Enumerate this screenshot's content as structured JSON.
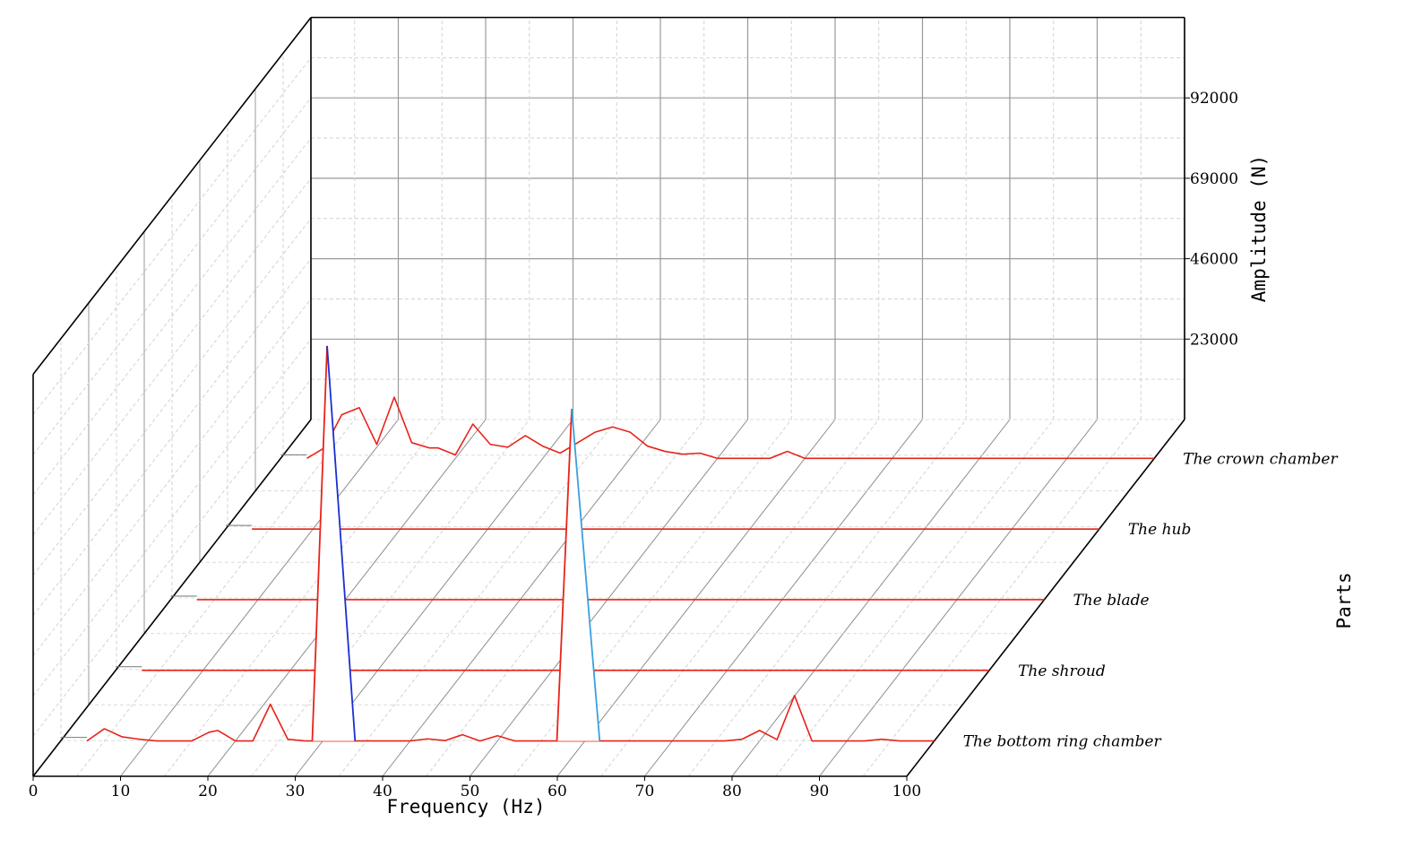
{
  "chart_data": {
    "type": "line",
    "projection": "3d-waterfall",
    "xlabel": "Frequency (Hz)",
    "ylabel": "Parts",
    "zlabel": "Amplitude (N)",
    "xlim": [
      0,
      100
    ],
    "zlim": [
      0,
      115000
    ],
    "x_ticks": [
      0,
      10,
      20,
      30,
      40,
      50,
      60,
      70,
      80,
      90,
      100
    ],
    "z_ticks": [
      23000,
      46000,
      69000,
      92000
    ],
    "grid": true,
    "frequencies": [
      5,
      7,
      9,
      11,
      13,
      15,
      17,
      18,
      20,
      22,
      24,
      26,
      28,
      30,
      32,
      34,
      36,
      38,
      40,
      42,
      44,
      46,
      48,
      50,
      52,
      54,
      56,
      58,
      60,
      62,
      64,
      66,
      68,
      70,
      72,
      74,
      76,
      78,
      80,
      82,
      84,
      86,
      88,
      90,
      92,
      94,
      96,
      98,
      100
    ],
    "series": [
      {
        "name": "The bottom ring chamber",
        "values": [
          3500,
          1200,
          500,
          0,
          0,
          0,
          2500,
          3000,
          0,
          0,
          10500,
          500,
          0,
          0,
          0,
          0,
          0,
          0,
          0,
          600,
          100,
          1800,
          0,
          1500,
          0,
          0,
          0,
          0,
          0,
          0,
          0,
          0,
          0,
          0,
          0,
          0,
          0,
          500,
          3000,
          400,
          13000,
          0,
          0,
          0,
          0,
          500,
          0,
          0,
          0
        ]
      },
      {
        "name": "The shroud",
        "values": [
          0,
          0,
          0,
          0,
          0,
          0,
          0,
          0,
          0,
          0,
          0,
          0,
          0,
          0,
          0,
          0,
          0,
          0,
          0,
          0,
          0,
          0,
          0,
          0,
          0,
          0,
          0,
          0,
          0,
          0,
          0,
          0,
          0,
          0,
          0,
          0,
          0,
          0,
          0,
          0,
          0,
          0,
          0,
          0,
          0,
          0,
          0,
          0,
          0
        ]
      },
      {
        "name": "The blade",
        "values": [
          0,
          0,
          0,
          0,
          0,
          0,
          0,
          0,
          0,
          0,
          0,
          0,
          0,
          0,
          0,
          0,
          0,
          0,
          0,
          0,
          0,
          0,
          0,
          0,
          0,
          0,
          0,
          0,
          0,
          0,
          0,
          0,
          0,
          0,
          0,
          0,
          0,
          0,
          0,
          0,
          0,
          0,
          0,
          0,
          0,
          0,
          0,
          0,
          0
        ]
      },
      {
        "name": "The hub",
        "values": [
          0,
          0,
          0,
          0,
          0,
          0,
          0,
          0,
          0,
          0,
          0,
          0,
          0,
          0,
          0,
          0,
          0,
          0,
          0,
          0,
          0,
          0,
          0,
          0,
          0,
          0,
          0,
          0,
          0,
          0,
          0,
          0,
          0,
          0,
          0,
          0,
          0,
          0,
          0,
          0,
          0,
          0,
          0,
          0,
          0,
          0,
          0,
          0,
          0
        ]
      },
      {
        "name": "The crown chamber",
        "values": [
          3000,
          12500,
          14500,
          4000,
          17500,
          4500,
          3000,
          3000,
          1000,
          9800,
          4000,
          3200,
          6500,
          3500,
          1500,
          4500,
          7500,
          9000,
          7500,
          3500,
          2000,
          1200,
          1500,
          0,
          0,
          0,
          0,
          2000,
          0,
          0,
          0,
          0,
          0,
          0,
          0,
          0,
          0,
          0,
          0,
          0,
          0,
          0,
          0,
          0,
          0,
          0,
          0,
          0,
          0
        ]
      }
    ],
    "spikes": [
      {
        "series": "The bottom ring chamber",
        "x": 30.5,
        "value": 113000
      },
      {
        "series": "The bottom ring chamber",
        "x": 58.5,
        "value": 95000
      }
    ]
  }
}
